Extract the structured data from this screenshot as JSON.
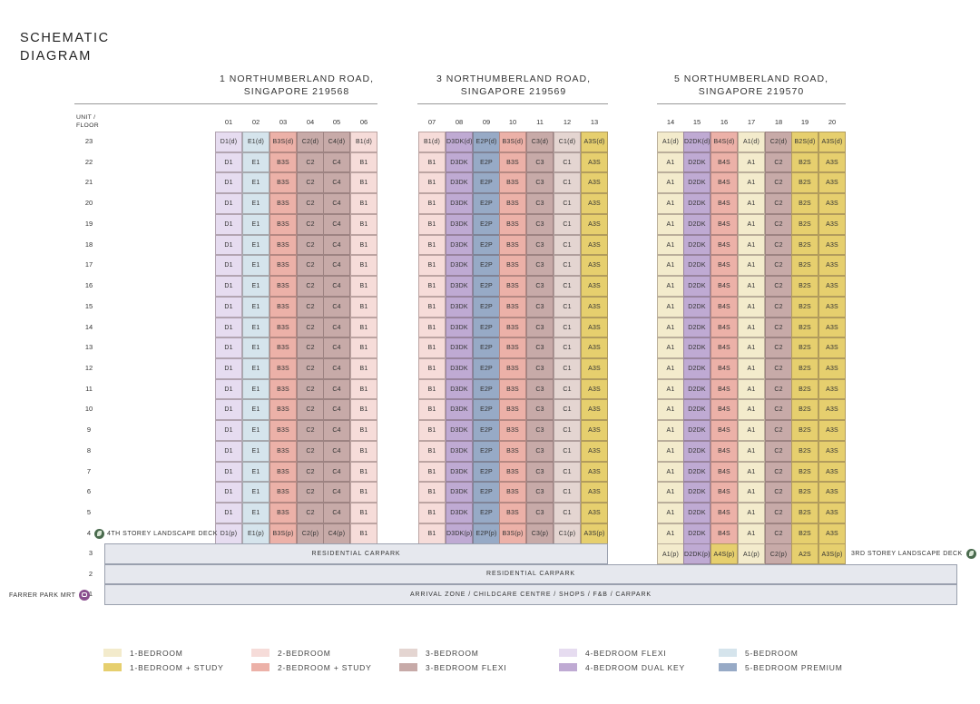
{
  "title": [
    "SCHEMATIC",
    "DIAGRAM"
  ],
  "buildings": [
    {
      "name": [
        "1 NORTHUMBERLAND ROAD,",
        "SINGAPORE 219568"
      ]
    },
    {
      "name": [
        "3 NORTHUMBERLAND ROAD,",
        "SINGAPORE 219569"
      ]
    },
    {
      "name": [
        "5 NORTHUMBERLAND ROAD,",
        "SINGAPORE 219570"
      ]
    }
  ],
  "unit_floor_label": [
    "UNIT /",
    "FLOOR"
  ],
  "units": [
    "01",
    "02",
    "03",
    "04",
    "05",
    "06",
    "07",
    "08",
    "09",
    "10",
    "11",
    "12",
    "13",
    "14",
    "15",
    "16",
    "17",
    "18",
    "19",
    "20"
  ],
  "floors": [
    "23",
    "22",
    "21",
    "20",
    "19",
    "18",
    "17",
    "16",
    "15",
    "14",
    "13",
    "12",
    "11",
    "10",
    "9",
    "8",
    "7",
    "6",
    "5",
    "4",
    "3",
    "2",
    "1"
  ],
  "unit_types": [
    "D1",
    "E1",
    "B3S",
    "C2",
    "C4",
    "B1",
    "B1",
    "D3DK",
    "E2P",
    "B3S",
    "C3",
    "C1",
    "A3S",
    "A1",
    "D2DK",
    "B4S",
    "A1",
    "C2",
    "B2S",
    "A3S"
  ],
  "unit_categories": [
    "4bf",
    "5b",
    "2bs",
    "3bf",
    "3bf",
    "2b",
    "2b",
    "4bdk",
    "5bp",
    "2bs",
    "3bf",
    "3b",
    "1bs",
    "1b",
    "4bdk",
    "2bs",
    "1b",
    "3bf",
    "1bs",
    "1bs"
  ],
  "floor23": [
    "D1(d)",
    "E1(d)",
    "B3S(d)",
    "C2(d)",
    "C4(d)",
    "B1(d)",
    "B1(d)",
    "D3DK(d)",
    "E2P(d)",
    "B3S(d)",
    "C3(d)",
    "C1(d)",
    "A3S(d)",
    "A1(d)",
    "D2DK(d)",
    "B4S(d)",
    "A1(d)",
    "C2(d)",
    "B2S(d)",
    "A3S(d)"
  ],
  "floor4": [
    "D1(p)",
    "E1(p)",
    "B3S(p)",
    "C2(p)",
    "C4(p)",
    "B1",
    "B1",
    "D3DK(p)",
    "E2P(p)",
    "B3S(p)",
    "C3(p)",
    "C1(p)",
    "A3S(p)",
    "A1",
    "D2DK",
    "B4S",
    "A1",
    "C2",
    "B2S",
    "A3S"
  ],
  "floor3_block5": [
    "A1(p)",
    "D2DK(p)",
    "A4S(p)",
    "A1(p)",
    "C2(p)",
    "A2S",
    "A3S(p)"
  ],
  "floor3_block5_categories": [
    "1b",
    "4bdk",
    "1bs",
    "1b",
    "3bf",
    "1bs",
    "1bs"
  ],
  "podium": {
    "level3": "RESIDENTIAL  CARPARK",
    "level2": "RESIDENTIAL CARPARK",
    "level1": "ARRIVAL ZONE / CHILDCARE CENTRE / SHOPS / F&B / CARPARK"
  },
  "decks": {
    "fourth": "4TH STOREY LANDSCAPE DECK",
    "third": "3RD STOREY LANDSCAPE DECK",
    "mrt": "FARRER PARK MRT"
  },
  "icons": {
    "deck": "leaf-icon",
    "mrt": "train-icon"
  },
  "colors": {
    "1b": "#f3ebcc",
    "1bs": "#e6cf6e",
    "2b": "#f6dcd9",
    "2bs": "#ecb1a8",
    "3b": "#e4d5d1",
    "3bf": "#c7aaa8",
    "4bf": "#e6dcf0",
    "4bdk": "#bfaad3",
    "5b": "#d5e4ec",
    "5bp": "#97aac6",
    "podium": "#e6e8ee"
  },
  "legend": [
    {
      "key": "1b",
      "label": "1-BEDROOM"
    },
    {
      "key": "1bs",
      "label": "1-BEDROOM + STUDY"
    },
    {
      "key": "2b",
      "label": "2-BEDROOM"
    },
    {
      "key": "2bs",
      "label": "2-BEDROOM + STUDY"
    },
    {
      "key": "3b",
      "label": "3-BEDROOM"
    },
    {
      "key": "3bf",
      "label": "3-BEDROOM FLEXI"
    },
    {
      "key": "4bf",
      "label": "4-BEDROOM FLEXI"
    },
    {
      "key": "4bdk",
      "label": "4-BEDROOM DUAL KEY"
    },
    {
      "key": "5b",
      "label": "5-BEDROOM"
    },
    {
      "key": "5bp",
      "label": "5-BEDROOM PREMIUM"
    }
  ]
}
